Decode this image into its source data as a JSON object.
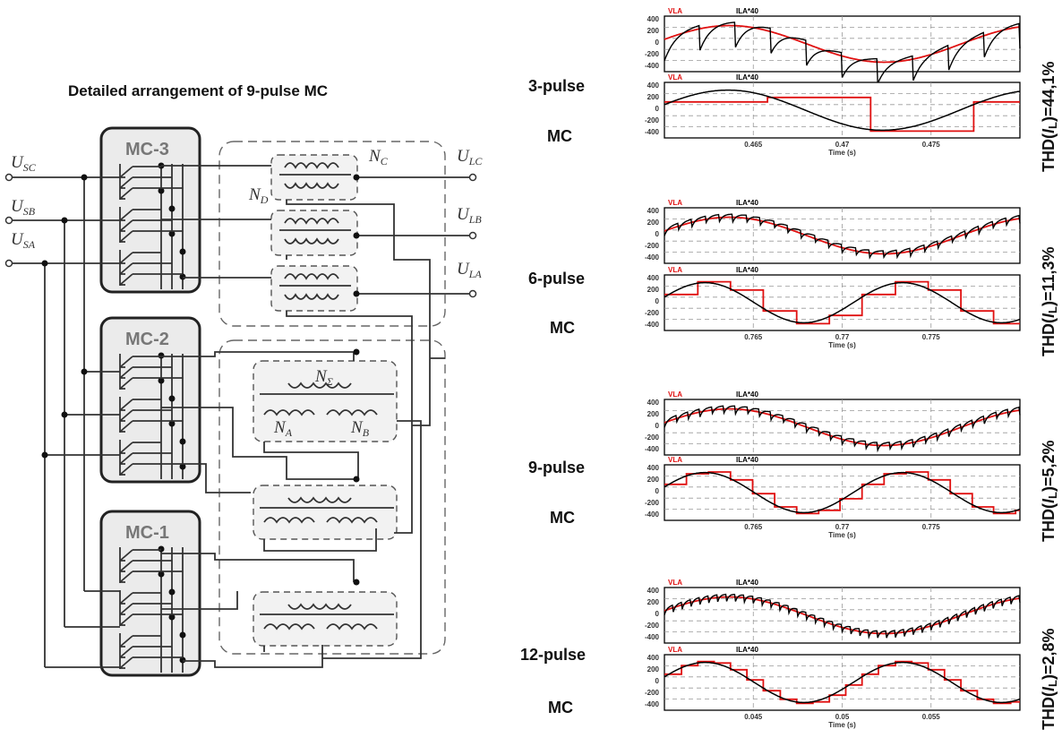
{
  "diagram_title": "Detailed  arrangement of  9-pulse MC",
  "converters": [
    "MC-3",
    "MC-2",
    "MC-1"
  ],
  "source_labels": [
    {
      "main": "U",
      "sub": "SC"
    },
    {
      "main": "U",
      "sub": "SB"
    },
    {
      "main": "U",
      "sub": "SA"
    }
  ],
  "load_labels": [
    {
      "main": "U",
      "sub": "LC"
    },
    {
      "main": "U",
      "sub": "LB"
    },
    {
      "main": "U",
      "sub": "LA"
    }
  ],
  "winding_labels": {
    "nc": {
      "main": "N",
      "sub": "C"
    },
    "nd": {
      "main": "N",
      "sub": "D"
    },
    "nsigma": {
      "main": "N",
      "sub": "Σ"
    },
    "na": {
      "main": "N",
      "sub": "A"
    },
    "nb": {
      "main": "N",
      "sub": "B"
    }
  },
  "cases": [
    {
      "label": "3-pulse",
      "mc": "MC",
      "thd_pre": "THD(",
      "thd_i": "I",
      "thd_sub": "L",
      "thd_post": ")=44,1%",
      "top_trace": {
        "ripple": 10,
        "decay": 0.3,
        "amp": 12
      },
      "bottom_trace": {
        "steps": 3
      },
      "xticks": [
        "0.465",
        "0.47",
        "0.475"
      ]
    },
    {
      "label": "6-pulse",
      "mc": "MC",
      "thd_pre": "THD(",
      "thd_i": "I",
      "thd_sub": "L",
      "thd_post": ")=11,3%",
      "top_trace": {
        "ripple": 26,
        "decay": 0.25,
        "amp": 9
      },
      "bottom_trace": {
        "steps": 6
      },
      "xticks": [
        "0.765",
        "0.77",
        "0.775"
      ]
    },
    {
      "label": "9-pulse",
      "mc": "MC",
      "thd_pre": "THD(",
      "thd_i": "I",
      "thd_sub": "L",
      "thd_post": ")=5,2%",
      "top_trace": {
        "ripple": 30,
        "decay": 0.25,
        "amp": 9
      },
      "bottom_trace": {
        "steps": 9
      },
      "xticks": [
        "0.765",
        "0.77",
        "0.775"
      ]
    },
    {
      "label": "12-pulse",
      "mc": "MC",
      "thd_pre": "THD(",
      "thd_i": "I",
      "thd_sub": "L",
      "thd_post": ")=2,8%",
      "top_trace": {
        "ripple": 40,
        "decay": 0.25,
        "amp": 8
      },
      "bottom_trace": {
        "steps": 12
      },
      "xticks": [
        "0.045",
        "0.05",
        "0.055"
      ]
    }
  ],
  "plot_legend": {
    "va": "VLA",
    "ia": "ILA*40"
  },
  "y_ticks": [
    "400",
    "200",
    "0",
    "-200",
    "-400"
  ],
  "x_axis_label": "Time (s)",
  "colors": {
    "ref": "#e01010",
    "trace": "#000000",
    "box": "#ebebeb"
  }
}
